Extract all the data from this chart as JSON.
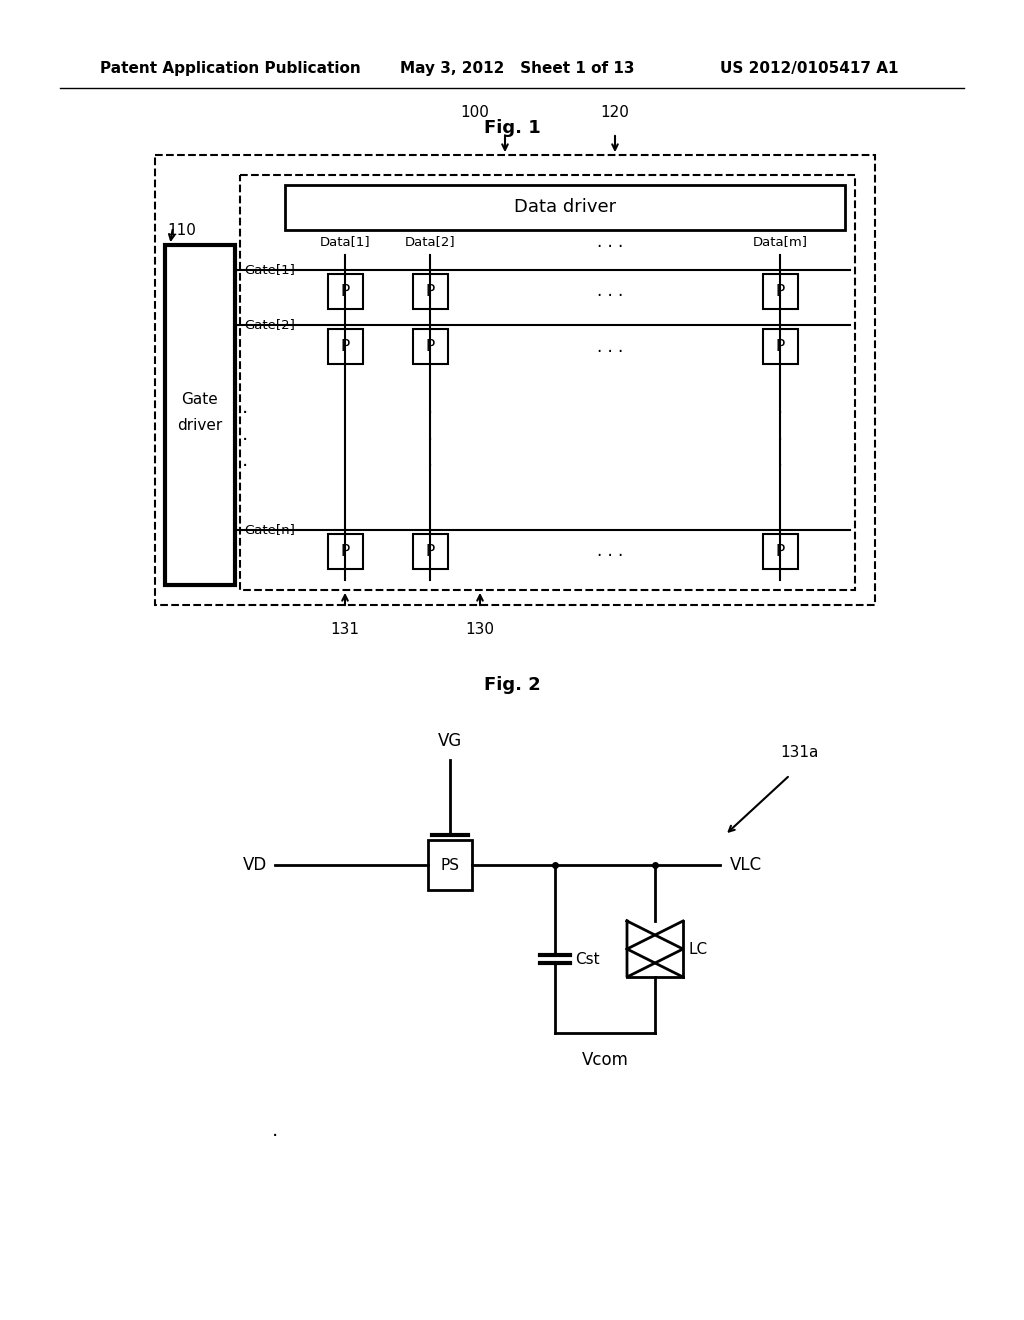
{
  "background_color": "#ffffff",
  "header_text1": "Patent Application Publication",
  "header_text2": "May 3, 2012   Sheet 1 of 13",
  "header_text3": "US 2012/0105417 A1",
  "fig1_title": "Fig. 1",
  "fig2_title": "Fig. 2",
  "label_100": "100",
  "label_110": "110",
  "label_120": "120",
  "label_130": "130",
  "label_131": "131",
  "label_131a": "131a"
}
